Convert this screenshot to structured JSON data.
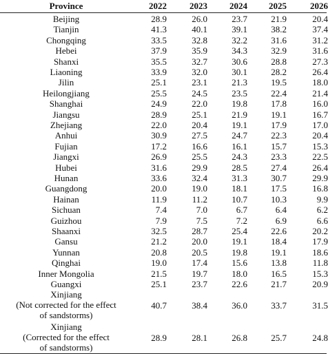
{
  "table": {
    "headers": [
      "Province",
      "2022",
      "2023",
      "2024",
      "2025",
      "2026"
    ],
    "rows": [
      {
        "province": "Beijing",
        "values": [
          "28.9",
          "26.0",
          "23.7",
          "21.9",
          "20.4"
        ]
      },
      {
        "province": "Tianjin",
        "values": [
          "41.3",
          "40.1",
          "39.1",
          "38.2",
          "37.4"
        ]
      },
      {
        "province": "Chongqing",
        "values": [
          "33.5",
          "32.8",
          "32.2",
          "31.6",
          "31.2"
        ]
      },
      {
        "province": "Hebei",
        "values": [
          "37.9",
          "35.9",
          "34.3",
          "32.9",
          "31.6"
        ]
      },
      {
        "province": "Shanxi",
        "values": [
          "35.5",
          "32.7",
          "30.6",
          "28.8",
          "27.3"
        ]
      },
      {
        "province": "Liaoning",
        "values": [
          "33.9",
          "32.0",
          "30.1",
          "28.2",
          "26.4"
        ]
      },
      {
        "province": "Jilin",
        "values": [
          "25.1",
          "23.1",
          "21.3",
          "19.5",
          "18.0"
        ]
      },
      {
        "province": "Heilongjiang",
        "values": [
          "25.5",
          "24.5",
          "23.5",
          "22.4",
          "21.4"
        ]
      },
      {
        "province": "Shanghai",
        "values": [
          "24.9",
          "22.0",
          "19.8",
          "17.8",
          "16.0"
        ]
      },
      {
        "province": "Jiangsu",
        "values": [
          "28.9",
          "25.1",
          "21.9",
          "19.1",
          "16.7"
        ]
      },
      {
        "province": "Zhejiang",
        "values": [
          "22.0",
          "20.4",
          "19.1",
          "17.9",
          "17.0"
        ]
      },
      {
        "province": "Anhui",
        "values": [
          "30.9",
          "27.5",
          "24.7",
          "22.3",
          "20.4"
        ]
      },
      {
        "province": "Fujian",
        "values": [
          "17.2",
          "16.6",
          "16.1",
          "15.7",
          "15.3"
        ]
      },
      {
        "province": "Jiangxi",
        "values": [
          "26.9",
          "25.5",
          "24.3",
          "23.3",
          "22.5"
        ]
      },
      {
        "province": "Hubei",
        "values": [
          "31.6",
          "29.9",
          "28.5",
          "27.4",
          "26.4"
        ]
      },
      {
        "province": "Hunan",
        "values": [
          "33.6",
          "32.4",
          "31.3",
          "30.7",
          "29.9"
        ]
      },
      {
        "province": "Guangdong",
        "values": [
          "20.0",
          "19.0",
          "18.1",
          "17.5",
          "16.8"
        ]
      },
      {
        "province": "Hainan",
        "values": [
          "11.9",
          "11.2",
          "10.7",
          "10.3",
          "9.9"
        ]
      },
      {
        "province": "Sichuan",
        "values": [
          "7.4",
          "7.0",
          "6.7",
          "6.4",
          "6.2"
        ]
      },
      {
        "province": "Guizhou",
        "values": [
          "7.9",
          "7.5",
          "7.2",
          "6.9",
          "6.6"
        ]
      },
      {
        "province": "Shaanxi",
        "values": [
          "32.5",
          "28.7",
          "25.4",
          "22.6",
          "20.2"
        ]
      },
      {
        "province": "Gansu",
        "values": [
          "21.2",
          "20.0",
          "19.1",
          "18.4",
          "17.9"
        ]
      },
      {
        "province": "Yunnan",
        "values": [
          "20.8",
          "20.5",
          "19.8",
          "19.1",
          "18.6"
        ]
      },
      {
        "province": "Qinghai",
        "values": [
          "19.0",
          "17.4",
          "15.6",
          "13.8",
          "11.8"
        ]
      },
      {
        "province": "Inner Mongolia",
        "values": [
          "21.5",
          "19.7",
          "18.0",
          "16.5",
          "15.3"
        ]
      },
      {
        "province": "Guangxi",
        "values": [
          "25.1",
          "23.7",
          "22.6",
          "21.7",
          "20.9"
        ]
      }
    ],
    "multi_rows": [
      {
        "province_lines": [
          "Xinjiang",
          "(Not corrected for the effect",
          "of sandstorms)"
        ],
        "values": [
          "40.7",
          "38.4",
          "36.0",
          "33.7",
          "31.5"
        ]
      },
      {
        "province_lines": [
          "Xinjiang",
          "(Corrected for the effect",
          "of sandstorms)"
        ],
        "values": [
          "28.9",
          "28.1",
          "26.8",
          "25.7",
          "24.8"
        ]
      }
    ]
  }
}
